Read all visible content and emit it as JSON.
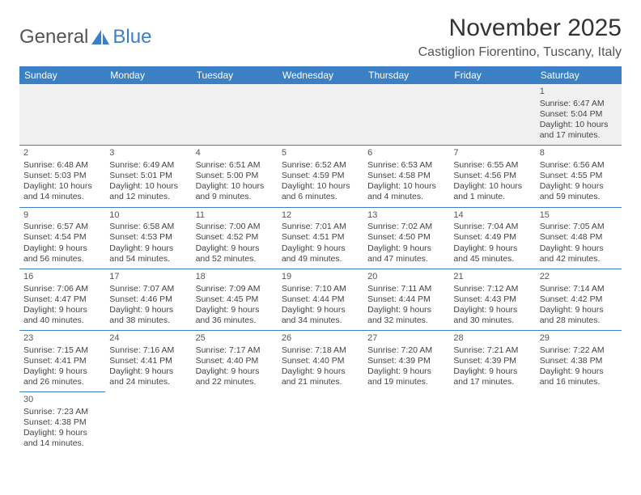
{
  "logo": {
    "text1": "General",
    "text2": "Blue"
  },
  "title": "November 2025",
  "location": "Castiglion Fiorentino, Tuscany, Italy",
  "header_bg": "#3b7fc4",
  "columns": [
    "Sunday",
    "Monday",
    "Tuesday",
    "Wednesday",
    "Thursday",
    "Friday",
    "Saturday"
  ],
  "weeks": [
    [
      null,
      null,
      null,
      null,
      null,
      null,
      {
        "n": "1",
        "sr": "6:47 AM",
        "ss": "5:04 PM",
        "dl": "10 hours and 17 minutes."
      }
    ],
    [
      {
        "n": "2",
        "sr": "6:48 AM",
        "ss": "5:03 PM",
        "dl": "10 hours and 14 minutes."
      },
      {
        "n": "3",
        "sr": "6:49 AM",
        "ss": "5:01 PM",
        "dl": "10 hours and 12 minutes."
      },
      {
        "n": "4",
        "sr": "6:51 AM",
        "ss": "5:00 PM",
        "dl": "10 hours and 9 minutes."
      },
      {
        "n": "5",
        "sr": "6:52 AM",
        "ss": "4:59 PM",
        "dl": "10 hours and 6 minutes."
      },
      {
        "n": "6",
        "sr": "6:53 AM",
        "ss": "4:58 PM",
        "dl": "10 hours and 4 minutes."
      },
      {
        "n": "7",
        "sr": "6:55 AM",
        "ss": "4:56 PM",
        "dl": "10 hours and 1 minute."
      },
      {
        "n": "8",
        "sr": "6:56 AM",
        "ss": "4:55 PM",
        "dl": "9 hours and 59 minutes."
      }
    ],
    [
      {
        "n": "9",
        "sr": "6:57 AM",
        "ss": "4:54 PM",
        "dl": "9 hours and 56 minutes."
      },
      {
        "n": "10",
        "sr": "6:58 AM",
        "ss": "4:53 PM",
        "dl": "9 hours and 54 minutes."
      },
      {
        "n": "11",
        "sr": "7:00 AM",
        "ss": "4:52 PM",
        "dl": "9 hours and 52 minutes."
      },
      {
        "n": "12",
        "sr": "7:01 AM",
        "ss": "4:51 PM",
        "dl": "9 hours and 49 minutes."
      },
      {
        "n": "13",
        "sr": "7:02 AM",
        "ss": "4:50 PM",
        "dl": "9 hours and 47 minutes."
      },
      {
        "n": "14",
        "sr": "7:04 AM",
        "ss": "4:49 PM",
        "dl": "9 hours and 45 minutes."
      },
      {
        "n": "15",
        "sr": "7:05 AM",
        "ss": "4:48 PM",
        "dl": "9 hours and 42 minutes."
      }
    ],
    [
      {
        "n": "16",
        "sr": "7:06 AM",
        "ss": "4:47 PM",
        "dl": "9 hours and 40 minutes."
      },
      {
        "n": "17",
        "sr": "7:07 AM",
        "ss": "4:46 PM",
        "dl": "9 hours and 38 minutes."
      },
      {
        "n": "18",
        "sr": "7:09 AM",
        "ss": "4:45 PM",
        "dl": "9 hours and 36 minutes."
      },
      {
        "n": "19",
        "sr": "7:10 AM",
        "ss": "4:44 PM",
        "dl": "9 hours and 34 minutes."
      },
      {
        "n": "20",
        "sr": "7:11 AM",
        "ss": "4:44 PM",
        "dl": "9 hours and 32 minutes."
      },
      {
        "n": "21",
        "sr": "7:12 AM",
        "ss": "4:43 PM",
        "dl": "9 hours and 30 minutes."
      },
      {
        "n": "22",
        "sr": "7:14 AM",
        "ss": "4:42 PM",
        "dl": "9 hours and 28 minutes."
      }
    ],
    [
      {
        "n": "23",
        "sr": "7:15 AM",
        "ss": "4:41 PM",
        "dl": "9 hours and 26 minutes."
      },
      {
        "n": "24",
        "sr": "7:16 AM",
        "ss": "4:41 PM",
        "dl": "9 hours and 24 minutes."
      },
      {
        "n": "25",
        "sr": "7:17 AM",
        "ss": "4:40 PM",
        "dl": "9 hours and 22 minutes."
      },
      {
        "n": "26",
        "sr": "7:18 AM",
        "ss": "4:40 PM",
        "dl": "9 hours and 21 minutes."
      },
      {
        "n": "27",
        "sr": "7:20 AM",
        "ss": "4:39 PM",
        "dl": "9 hours and 19 minutes."
      },
      {
        "n": "28",
        "sr": "7:21 AM",
        "ss": "4:39 PM",
        "dl": "9 hours and 17 minutes."
      },
      {
        "n": "29",
        "sr": "7:22 AM",
        "ss": "4:38 PM",
        "dl": "9 hours and 16 minutes."
      }
    ],
    [
      {
        "n": "30",
        "sr": "7:23 AM",
        "ss": "4:38 PM",
        "dl": "9 hours and 14 minutes."
      },
      null,
      null,
      null,
      null,
      null,
      null
    ]
  ],
  "labels": {
    "sunrise": "Sunrise: ",
    "sunset": "Sunset: ",
    "daylight": "Daylight: "
  }
}
